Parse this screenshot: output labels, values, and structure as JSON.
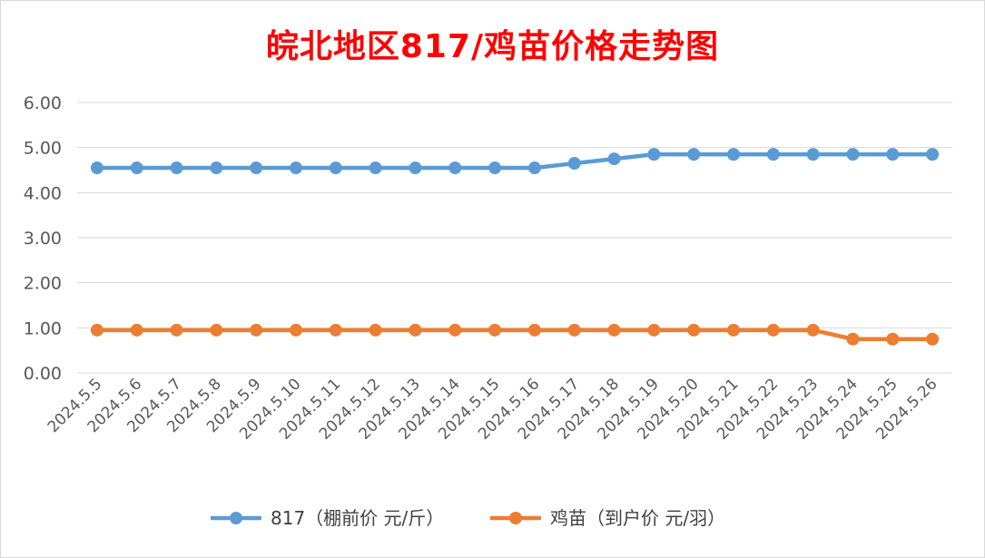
{
  "chart_data": {
    "type": "line",
    "title": "皖北地区817/鸡苗价格走势图",
    "categories": [
      "2024.5.5",
      "2024.5.6",
      "2024.5.7",
      "2024.5.8",
      "2024.5.9",
      "2024.5.10",
      "2024.5.11",
      "2024.5.12",
      "2024.5.13",
      "2024.5.14",
      "2024.5.15",
      "2024.5.16",
      "2024.5.17",
      "2024.5.18",
      "2024.5.19",
      "2024.5.20",
      "2024.5.21",
      "2024.5.22",
      "2024.5.23",
      "2024.5.24",
      "2024.5.25",
      "2024.5.26"
    ],
    "series": [
      {
        "name": "817（棚前价 元/斤）",
        "color": "#5b9bd5",
        "values": [
          4.55,
          4.55,
          4.55,
          4.55,
          4.55,
          4.55,
          4.55,
          4.55,
          4.55,
          4.55,
          4.55,
          4.55,
          4.65,
          4.75,
          4.85,
          4.85,
          4.85,
          4.85,
          4.85,
          4.85,
          4.85,
          4.85
        ]
      },
      {
        "name": "鸡苗（到户价 元/羽）",
        "color": "#ed7d31",
        "values": [
          0.95,
          0.95,
          0.95,
          0.95,
          0.95,
          0.95,
          0.95,
          0.95,
          0.95,
          0.95,
          0.95,
          0.95,
          0.95,
          0.95,
          0.95,
          0.95,
          0.95,
          0.95,
          0.95,
          0.75,
          0.75,
          0.75
        ]
      }
    ],
    "y_ticks": [
      "0.00",
      "1.00",
      "2.00",
      "3.00",
      "4.00",
      "5.00",
      "6.00"
    ],
    "ylim": [
      0,
      6
    ],
    "grid": true,
    "legend": "bottom"
  }
}
